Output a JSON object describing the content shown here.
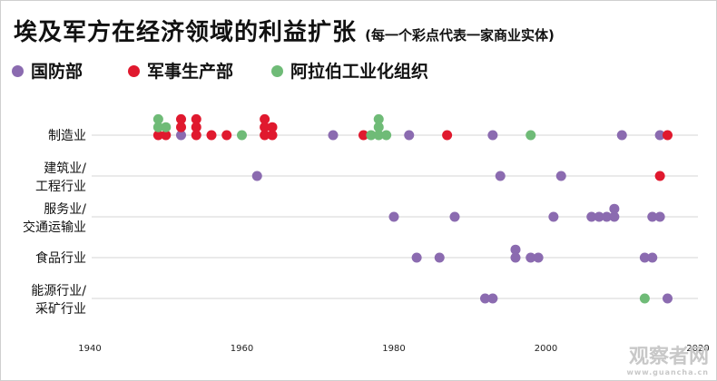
{
  "title": "埃及军方在经济领域的利益扩张",
  "subtitle": "(每一个彩点代表一家商业实体)",
  "legend": [
    {
      "label": "国防部",
      "color": "#8b6bb0"
    },
    {
      "label": "军事生产部",
      "color": "#e0192e"
    },
    {
      "label": "阿拉伯工业化组织",
      "color": "#6fbb77"
    }
  ],
  "watermark": {
    "text": "观察者网",
    "sub": "www.guancha.cn"
  },
  "chart_data": {
    "type": "scatter",
    "title": "埃及军方在经济领域的利益扩张",
    "subtitle": "(每一个彩点代表一家商业实体)",
    "xlim": [
      1940,
      2020
    ],
    "x_ticks": [
      1940,
      1960,
      1980,
      2000,
      2020
    ],
    "grid": "horizontal lines per category",
    "legend_position": "top-left",
    "categories": [
      "制造业",
      "建筑业/工程行业",
      "服务业/交通运输业",
      "食品行业",
      "能源行业/采矿行业"
    ],
    "category_labels": [
      [
        "制造业"
      ],
      [
        "建筑业/",
        "工程行业"
      ],
      [
        "服务业/",
        "交通运输业"
      ],
      [
        "食品行业"
      ],
      [
        "能源行业/",
        "采矿行业"
      ]
    ],
    "series": [
      {
        "name": "国防部",
        "color": "#8b6bb0",
        "points": [
          {
            "category": "制造业",
            "x": 1952
          },
          {
            "category": "制造业",
            "x": 1972
          },
          {
            "category": "制造业",
            "x": 1982
          },
          {
            "category": "制造业",
            "x": 1993
          },
          {
            "category": "制造业",
            "x": 2010
          },
          {
            "category": "制造业",
            "x": 2015
          },
          {
            "category": "建筑业/工程行业",
            "x": 1962
          },
          {
            "category": "建筑业/工程行业",
            "x": 1994
          },
          {
            "category": "建筑业/工程行业",
            "x": 2002
          },
          {
            "category": "服务业/交通运输业",
            "x": 1980
          },
          {
            "category": "服务业/交通运输业",
            "x": 1988
          },
          {
            "category": "服务业/交通运输业",
            "x": 2001
          },
          {
            "category": "服务业/交通运输业",
            "x": 2006
          },
          {
            "category": "服务业/交通运输业",
            "x": 2007
          },
          {
            "category": "服务业/交通运输业",
            "x": 2008
          },
          {
            "category": "服务业/交通运输业",
            "x": 2009
          },
          {
            "category": "服务业/交通运输业",
            "x": 2009
          },
          {
            "category": "服务业/交通运输业",
            "x": 2014
          },
          {
            "category": "服务业/交通运输业",
            "x": 2015
          },
          {
            "category": "食品行业",
            "x": 1983
          },
          {
            "category": "食品行业",
            "x": 1986
          },
          {
            "category": "食品行业",
            "x": 1996
          },
          {
            "category": "食品行业",
            "x": 1996
          },
          {
            "category": "食品行业",
            "x": 1998
          },
          {
            "category": "食品行业",
            "x": 1999
          },
          {
            "category": "食品行业",
            "x": 2013
          },
          {
            "category": "食品行业",
            "x": 2014
          },
          {
            "category": "能源行业/采矿行业",
            "x": 1992
          },
          {
            "category": "能源行业/采矿行业",
            "x": 1993
          },
          {
            "category": "能源行业/采矿行业",
            "x": 2016
          }
        ]
      },
      {
        "name": "军事生产部",
        "color": "#e0192e",
        "points": [
          {
            "category": "制造业",
            "x": 1949
          },
          {
            "category": "制造业",
            "x": 1950
          },
          {
            "category": "制造业",
            "x": 1952
          },
          {
            "category": "制造业",
            "x": 1952
          },
          {
            "category": "制造业",
            "x": 1954
          },
          {
            "category": "制造业",
            "x": 1954
          },
          {
            "category": "制造业",
            "x": 1954
          },
          {
            "category": "制造业",
            "x": 1956
          },
          {
            "category": "制造业",
            "x": 1958
          },
          {
            "category": "制造业",
            "x": 1963
          },
          {
            "category": "制造业",
            "x": 1963
          },
          {
            "category": "制造业",
            "x": 1963
          },
          {
            "category": "制造业",
            "x": 1964
          },
          {
            "category": "制造业",
            "x": 1964
          },
          {
            "category": "制造业",
            "x": 1976
          },
          {
            "category": "制造业",
            "x": 1987
          },
          {
            "category": "制造业",
            "x": 2016
          },
          {
            "category": "建筑业/工程行业",
            "x": 2015
          }
        ]
      },
      {
        "name": "阿拉伯工业化组织",
        "color": "#6fbb77",
        "points": [
          {
            "category": "制造业",
            "x": 1949
          },
          {
            "category": "制造业",
            "x": 1949
          },
          {
            "category": "制造业",
            "x": 1950
          },
          {
            "category": "制造业",
            "x": 1960
          },
          {
            "category": "制造业",
            "x": 1977
          },
          {
            "category": "制造业",
            "x": 1978
          },
          {
            "category": "制造业",
            "x": 1978
          },
          {
            "category": "制造业",
            "x": 1978
          },
          {
            "category": "制造业",
            "x": 1979
          },
          {
            "category": "制造业",
            "x": 1998
          },
          {
            "category": "能源行业/采矿行业",
            "x": 2013
          }
        ]
      }
    ]
  }
}
